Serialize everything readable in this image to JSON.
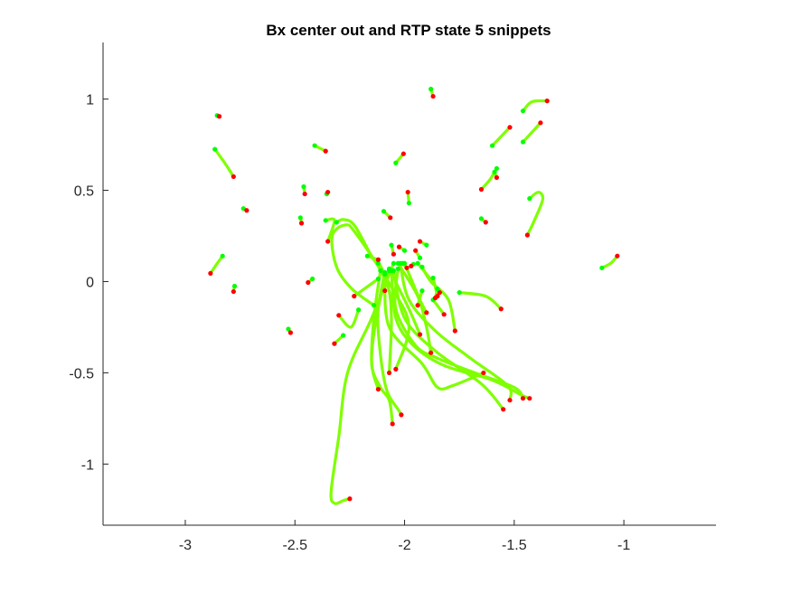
{
  "chart_data": {
    "type": "line",
    "title": "Bx  center out and RTP state 5 snippets",
    "xlabel": "",
    "ylabel": "",
    "xlim": [
      -3.375,
      -0.58
    ],
    "ylim": [
      -1.335,
      1.31
    ],
    "xticks": [
      -3,
      -2.5,
      -2,
      -1.5,
      -1
    ],
    "xtick_labels": [
      "-3",
      "-2.5",
      "-2",
      "-1.5",
      "-1"
    ],
    "yticks": [
      -1,
      -0.5,
      0,
      0.5,
      1
    ],
    "ytick_labels": [
      "-1",
      "-0.5",
      "0",
      "0.5",
      "1"
    ],
    "grid": false,
    "legend": "none",
    "colors": {
      "line": "#7fff00",
      "start": "#00ff00",
      "end": "#ff0000",
      "axis": "#262626"
    },
    "series": [
      {
        "points": [
          [
            -2.855,
            0.91
          ],
          [
            -2.845,
            0.905
          ]
        ]
      },
      {
        "points": [
          [
            -2.865,
            0.725
          ],
          [
            -2.82,
            0.65
          ],
          [
            -2.78,
            0.575
          ]
        ]
      },
      {
        "points": [
          [
            -2.735,
            0.4
          ],
          [
            -2.72,
            0.39
          ]
        ]
      },
      {
        "points": [
          [
            -2.775,
            -0.025
          ],
          [
            -2.78,
            -0.055
          ]
        ]
      },
      {
        "points": [
          [
            -2.83,
            0.14
          ],
          [
            -2.86,
            0.09
          ],
          [
            -2.885,
            0.045
          ]
        ]
      },
      {
        "points": [
          [
            -2.53,
            -0.26
          ],
          [
            -2.52,
            -0.28
          ]
        ]
      },
      {
        "points": [
          [
            -2.475,
            0.35
          ],
          [
            -2.47,
            0.32
          ]
        ]
      },
      {
        "points": [
          [
            -2.46,
            0.52
          ],
          [
            -2.455,
            0.48
          ]
        ]
      },
      {
        "points": [
          [
            -2.41,
            0.745
          ],
          [
            -2.36,
            0.715
          ]
        ]
      },
      {
        "points": [
          [
            -2.355,
            0.48
          ],
          [
            -2.35,
            0.49
          ]
        ]
      },
      {
        "points": [
          [
            -2.42,
            0.015
          ],
          [
            -2.44,
            -0.005
          ]
        ]
      },
      {
        "points": [
          [
            -2.28,
            -0.295
          ],
          [
            -2.32,
            -0.34
          ]
        ]
      },
      {
        "points": [
          [
            -2.21,
            -0.155
          ],
          [
            -2.245,
            -0.25
          ],
          [
            -2.3,
            -0.185
          ]
        ]
      },
      {
        "points": [
          [
            -2.095,
            0.385
          ],
          [
            -2.065,
            0.35
          ]
        ]
      },
      {
        "points": [
          [
            -2.04,
            0.65
          ],
          [
            -2.005,
            0.7
          ]
        ]
      },
      {
        "points": [
          [
            -1.98,
            0.43
          ],
          [
            -1.985,
            0.49
          ]
        ]
      },
      {
        "points": [
          [
            -1.88,
            1.055
          ],
          [
            -1.87,
            1.015
          ]
        ]
      },
      {
        "points": [
          [
            -2.12,
            0.015
          ],
          [
            -2.23,
            -0.08
          ]
        ]
      },
      {
        "points": [
          [
            -2.14,
            -0.13
          ],
          [
            -2.24,
            -0.04
          ],
          [
            -2.31,
            0.08
          ],
          [
            -2.33,
            0.25
          ],
          [
            -2.27,
            0.31
          ],
          [
            -2.22,
            0.26
          ],
          [
            -2.05,
            -0.05
          ],
          [
            -1.98,
            -0.25
          ],
          [
            -2.04,
            -0.48
          ]
        ]
      },
      {
        "points": [
          [
            -2.36,
            0.335
          ],
          [
            -2.32,
            0.335
          ],
          [
            -2.35,
            0.22
          ]
        ]
      },
      {
        "points": [
          [
            -2.31,
            0.325
          ],
          [
            -2.28,
            0.34
          ],
          [
            -2.23,
            0.31
          ],
          [
            -2.16,
            0.16
          ],
          [
            -2.08,
            -0.01
          ],
          [
            -2.06,
            -0.2
          ],
          [
            -2.07,
            -0.5
          ]
        ]
      },
      {
        "points": [
          [
            -2.05,
            0.1
          ],
          [
            -2.15,
            -0.2
          ],
          [
            -2.26,
            -0.5
          ],
          [
            -2.3,
            -0.85
          ],
          [
            -2.335,
            -1.15
          ],
          [
            -2.32,
            -1.215
          ],
          [
            -2.28,
            -1.2
          ],
          [
            -2.25,
            -1.19
          ]
        ]
      },
      {
        "points": [
          [
            -2.09,
            0.05
          ],
          [
            -2.13,
            -0.2
          ],
          [
            -2.15,
            -0.45
          ],
          [
            -2.11,
            -0.58
          ],
          [
            -2.07,
            -0.65
          ],
          [
            -2.055,
            -0.78
          ]
        ]
      },
      {
        "points": [
          [
            -2.07,
            0.06
          ],
          [
            -2.12,
            -0.15
          ],
          [
            -2.11,
            -0.4
          ],
          [
            -2.08,
            -0.6
          ],
          [
            -2.03,
            -0.7
          ],
          [
            -2.015,
            -0.73
          ]
        ]
      },
      {
        "points": [
          [
            -2.11,
            0.06
          ],
          [
            -2.14,
            -0.2
          ],
          [
            -2.15,
            -0.45
          ],
          [
            -2.12,
            -0.59
          ]
        ]
      },
      {
        "points": [
          [
            -2.05,
            0.06
          ],
          [
            -2.0,
            -0.2
          ],
          [
            -1.86,
            -0.38
          ],
          [
            -1.65,
            -0.56
          ],
          [
            -1.55,
            -0.7
          ]
        ]
      },
      {
        "points": [
          [
            -2.02,
            0.1
          ],
          [
            -1.98,
            -0.1
          ],
          [
            -1.86,
            -0.27
          ],
          [
            -1.7,
            -0.42
          ],
          [
            -1.53,
            -0.57
          ],
          [
            -1.52,
            -0.65
          ]
        ]
      },
      {
        "points": [
          [
            -2.03,
            0.07
          ],
          [
            -2.04,
            -0.15
          ],
          [
            -1.95,
            -0.35
          ],
          [
            -1.85,
            -0.42
          ],
          [
            -1.68,
            -0.5
          ],
          [
            -1.5,
            -0.58
          ],
          [
            -1.46,
            -0.64
          ]
        ]
      },
      {
        "points": [
          [
            -2.06,
            0.06
          ],
          [
            -2.04,
            -0.2
          ],
          [
            -1.96,
            -0.35
          ],
          [
            -1.82,
            -0.46
          ],
          [
            -1.6,
            -0.54
          ],
          [
            -1.47,
            -0.62
          ],
          [
            -1.43,
            -0.64
          ]
        ]
      },
      {
        "points": [
          [
            -2.09,
            0.04
          ],
          [
            -2.07,
            -0.25
          ],
          [
            -1.92,
            -0.45
          ],
          [
            -1.85,
            -0.58
          ],
          [
            -1.78,
            -0.57
          ],
          [
            -1.64,
            -0.5
          ]
        ]
      },
      {
        "points": [
          [
            -2.12,
            0.1
          ],
          [
            -2.1,
            0.06
          ],
          [
            -2.09,
            -0.05
          ]
        ]
      },
      {
        "points": [
          [
            -2.07,
            0.07
          ],
          [
            -1.98,
            -0.15
          ],
          [
            -1.93,
            -0.29
          ]
        ]
      },
      {
        "points": [
          [
            -2.03,
            0.1
          ],
          [
            -1.94,
            -0.08
          ],
          [
            -1.9,
            -0.25
          ],
          [
            -1.88,
            -0.39
          ]
        ]
      },
      {
        "points": [
          [
            -2.0,
            0.1
          ],
          [
            -1.93,
            -0.1
          ],
          [
            -1.9,
            -0.17
          ]
        ]
      },
      {
        "points": [
          [
            -1.94,
            0.1
          ],
          [
            -1.88,
            0.01
          ],
          [
            -1.84,
            -0.06
          ]
        ]
      },
      {
        "points": [
          [
            -1.92,
            0.08
          ],
          [
            -1.88,
            0.0
          ],
          [
            -1.8,
            -0.1
          ],
          [
            -1.77,
            -0.27
          ]
        ]
      },
      {
        "points": [
          [
            -1.92,
            -0.05
          ],
          [
            -1.94,
            -0.13
          ]
        ]
      },
      {
        "points": [
          [
            -1.87,
            -0.1
          ],
          [
            -1.82,
            -0.18
          ]
        ]
      },
      {
        "points": [
          [
            -1.85,
            -0.04
          ],
          [
            -1.86,
            -0.09
          ]
        ]
      },
      {
        "points": [
          [
            -1.96,
            0.095
          ],
          [
            -1.97,
            0.085
          ]
        ]
      },
      {
        "points": [
          [
            -2.01,
            0.1
          ],
          [
            -1.99,
            0.075
          ]
        ]
      },
      {
        "points": [
          [
            -2.0,
            0.17
          ],
          [
            -2.025,
            0.19
          ]
        ]
      },
      {
        "points": [
          [
            -2.06,
            0.2
          ],
          [
            -2.05,
            0.15
          ]
        ]
      },
      {
        "points": [
          [
            -2.17,
            0.14
          ],
          [
            -2.12,
            0.12
          ]
        ]
      },
      {
        "points": [
          [
            -1.9,
            0.2
          ],
          [
            -1.93,
            0.22
          ]
        ]
      },
      {
        "points": [
          [
            -1.93,
            0.13
          ],
          [
            -1.95,
            0.17
          ]
        ]
      },
      {
        "points": [
          [
            -1.75,
            -0.06
          ],
          [
            -1.63,
            -0.08
          ],
          [
            -1.56,
            -0.15
          ]
        ]
      },
      {
        "points": [
          [
            -1.87,
            0.02
          ],
          [
            -1.86,
            -0.03
          ],
          [
            -1.85,
            -0.08
          ]
        ]
      },
      {
        "points": [
          [
            -1.6,
            0.745
          ],
          [
            -1.52,
            0.845
          ]
        ]
      },
      {
        "points": [
          [
            -1.46,
            0.935
          ],
          [
            -1.42,
            0.985
          ],
          [
            -1.35,
            0.99
          ]
        ]
      },
      {
        "points": [
          [
            -1.46,
            0.765
          ],
          [
            -1.41,
            0.83
          ],
          [
            -1.38,
            0.87
          ]
        ]
      },
      {
        "points": [
          [
            -1.58,
            0.62
          ],
          [
            -1.61,
            0.56
          ],
          [
            -1.65,
            0.505
          ]
        ]
      },
      {
        "points": [
          [
            -1.59,
            0.6
          ],
          [
            -1.58,
            0.57
          ]
        ]
      },
      {
        "points": [
          [
            -1.43,
            0.455
          ],
          [
            -1.39,
            0.49
          ],
          [
            -1.37,
            0.45
          ],
          [
            -1.41,
            0.33
          ],
          [
            -1.44,
            0.255
          ]
        ]
      },
      {
        "points": [
          [
            -1.65,
            0.345
          ],
          [
            -1.63,
            0.325
          ]
        ]
      },
      {
        "points": [
          [
            -1.1,
            0.075
          ],
          [
            -1.06,
            0.1
          ],
          [
            -1.03,
            0.14
          ]
        ]
      }
    ]
  }
}
